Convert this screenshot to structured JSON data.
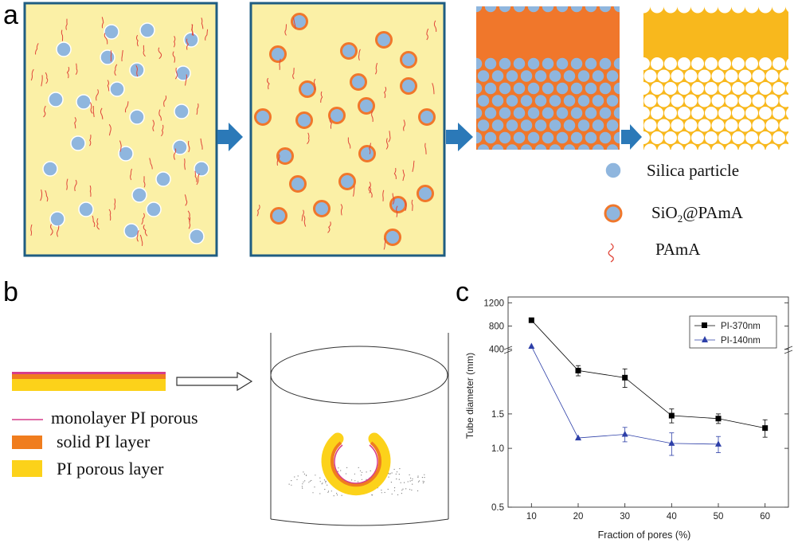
{
  "panel_a": {
    "letter": "a",
    "legend": {
      "silica": "Silica particle",
      "sio2_pama_prefix": "SiO",
      "sio2_pama_sub": "2",
      "sio2_pama_suffix": "@PAmA",
      "pama": "PAmA"
    },
    "colors": {
      "box_fill": "#fbf0a6",
      "box_border": "#1f5d82",
      "silica": "#8fb6de",
      "shell": "#f0772b",
      "polymer": "#e0463a",
      "arrow": "#2b79b8",
      "film_yellow": "#f8b81d"
    }
  },
  "panel_b": {
    "letter": "b",
    "legend": {
      "monolayer": "monolayer PI porous",
      "solid": "solid PI layer",
      "porous": "PI porous layer"
    },
    "colors": {
      "monolayer": "#d63d8a",
      "solid": "#f07d1e",
      "porous": "#fcd21a"
    }
  },
  "panel_c": {
    "letter": "c",
    "chart_data": {
      "type": "line",
      "xlabel": "Fraction of pores (%)",
      "ylabel": "Tube diameter (mm)",
      "x_ticks": [
        "10",
        "20",
        "30",
        "40",
        "50",
        "60"
      ],
      "y_ticks_lower": [
        "0.5",
        "1.0",
        "1.5"
      ],
      "y_ticks_upper": [
        "400",
        "800",
        "1200"
      ],
      "y_scale": "broken axis (log lower segment, linear upper segment)",
      "xlim": [
        5,
        65
      ],
      "legend_position": "top-right",
      "series": [
        {
          "name": "PI-370nm",
          "marker": "square",
          "color": "#000000",
          "x": [
            10,
            20,
            30,
            40,
            50,
            60
          ],
          "y": [
            900,
            2.5,
            2.3,
            1.47,
            1.42,
            1.27
          ],
          "err": [
            0,
            0.15,
            0.25,
            0.12,
            0.08,
            0.13
          ]
        },
        {
          "name": "PI-140nm",
          "marker": "triangle",
          "color": "#2d3fa8",
          "x": [
            10,
            20,
            30,
            40,
            50
          ],
          "y": [
            450,
            1.13,
            1.18,
            1.06,
            1.05
          ],
          "err": [
            0,
            0,
            0.1,
            0.14,
            0.1
          ]
        }
      ]
    }
  }
}
